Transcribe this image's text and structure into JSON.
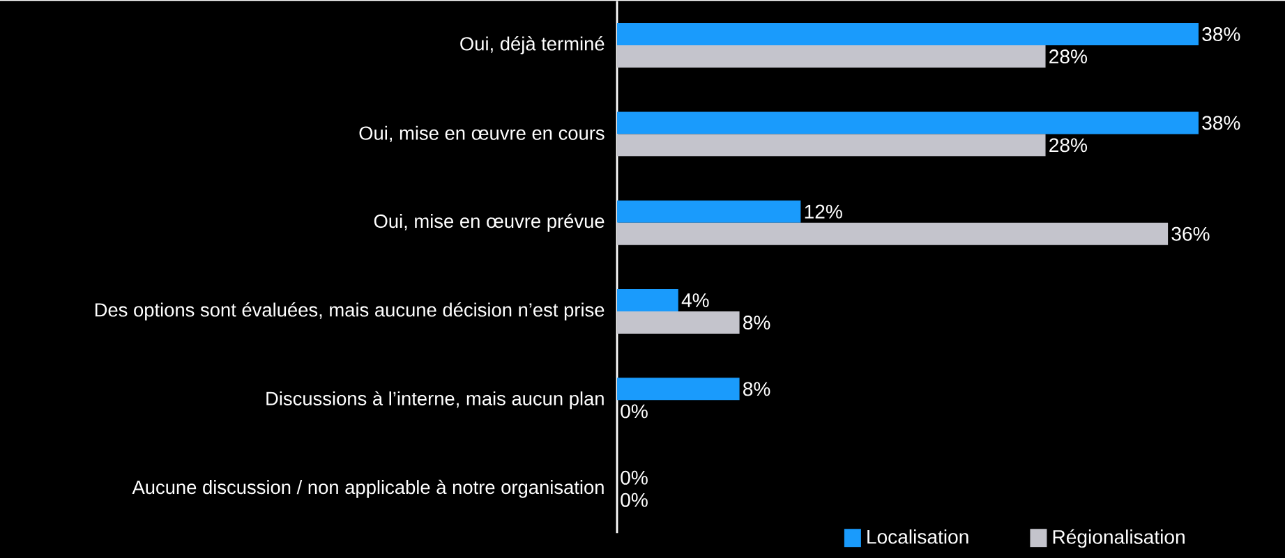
{
  "chart_data": {
    "type": "bar",
    "orientation": "horizontal",
    "categories": [
      "Oui, déjà terminé",
      "Oui, mise en œuvre en cours",
      "Oui, mise en œuvre prévue",
      "Des options sont évaluées, mais aucune décision n’est prise",
      "Discussions à l’interne, mais aucun plan",
      "Aucune discussion / non applicable à notre organisation"
    ],
    "series": [
      {
        "name": "Localisation",
        "color": "#1a9bfc",
        "values": [
          38,
          38,
          12,
          4,
          8,
          0
        ],
        "value_labels": [
          "38%",
          "38%",
          "12%",
          "4%",
          "8%",
          "0%"
        ]
      },
      {
        "name": "Régionalisation",
        "color": "#c4c4cc",
        "values": [
          28,
          28,
          36,
          8,
          0,
          0
        ],
        "value_labels": [
          "28%",
          "28%",
          "36%",
          "8%",
          "0%",
          "0%"
        ]
      }
    ],
    "tick_labels": "y",
    "legend": "bottom right"
  }
}
